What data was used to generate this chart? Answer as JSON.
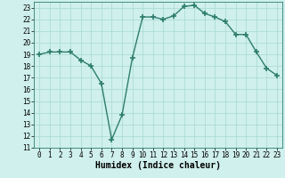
{
  "x": [
    0,
    1,
    2,
    3,
    4,
    5,
    6,
    7,
    8,
    9,
    10,
    11,
    12,
    13,
    14,
    15,
    16,
    17,
    18,
    19,
    20,
    21,
    22,
    23
  ],
  "y": [
    19,
    19.2,
    19.2,
    19.2,
    18.5,
    18,
    16.5,
    11.7,
    13.8,
    18.7,
    22.2,
    22.2,
    22,
    22.3,
    23.1,
    23.2,
    22.5,
    22.2,
    21.8,
    20.7,
    20.7,
    19.2,
    17.8,
    17.2
  ],
  "line_color": "#2e7d6e",
  "marker": "+",
  "marker_size": 4,
  "bg_color": "#cff0ec",
  "grid_color": "#a8d8d0",
  "xlabel": "Humidex (Indice chaleur)",
  "xlim": [
    -0.5,
    23.5
  ],
  "ylim": [
    11,
    23.5
  ],
  "yticks": [
    11,
    12,
    13,
    14,
    15,
    16,
    17,
    18,
    19,
    20,
    21,
    22,
    23
  ],
  "xticks": [
    0,
    1,
    2,
    3,
    4,
    5,
    6,
    7,
    8,
    9,
    10,
    11,
    12,
    13,
    14,
    15,
    16,
    17,
    18,
    19,
    20,
    21,
    22,
    23
  ],
  "xlabel_fontsize": 7,
  "tick_fontsize": 5.5,
  "linewidth": 1.0,
  "marker_linewidth": 1.2
}
